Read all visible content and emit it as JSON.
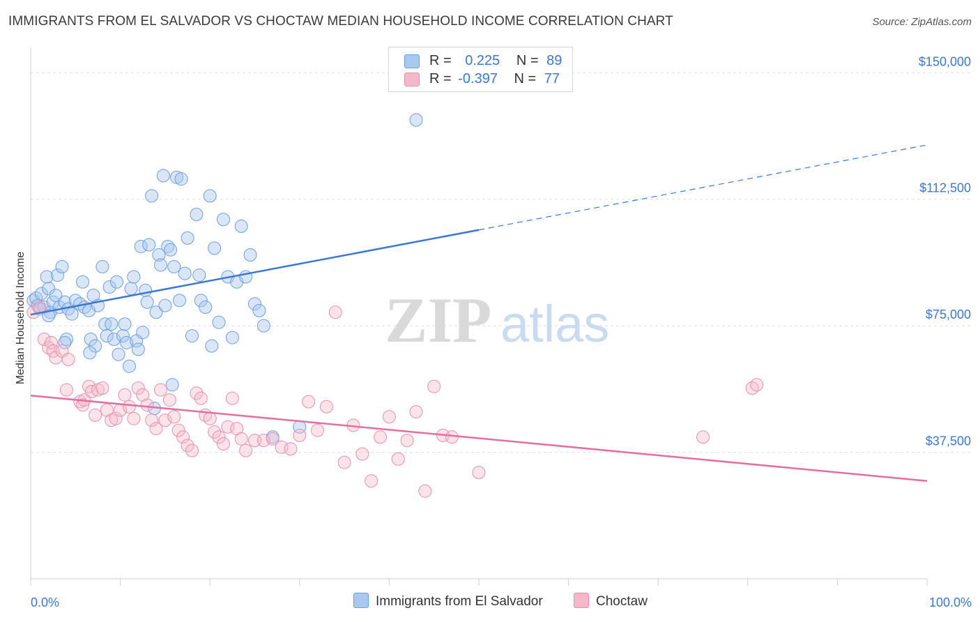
{
  "header": {
    "title": "IMMIGRANTS FROM EL SALVADOR VS CHOCTAW MEDIAN HOUSEHOLD INCOME CORRELATION CHART",
    "source": "Source: ZipAtlas.com"
  },
  "watermark": {
    "zip": "ZIP",
    "atlas": "atlas"
  },
  "legend": {
    "rows": [
      {
        "r_label": "R =",
        "r_value": "0.225",
        "n_label": "N =",
        "n_value": "89",
        "color": "#a9c8f0"
      },
      {
        "r_label": "R =",
        "r_value": "-0.397",
        "n_label": "N =",
        "n_value": "77",
        "color": "#f5b8cb"
      }
    ]
  },
  "chart_data": {
    "type": "scatter",
    "xlabel": "",
    "ylabel": "Median Household Income",
    "xlim": [
      0,
      100
    ],
    "ylim": [
      0,
      157500
    ],
    "x_tick_labels": [
      "0.0%",
      "100.0%"
    ],
    "y_tick_labels": [
      "$37,500",
      "$75,000",
      "$112,500",
      "$150,000"
    ],
    "y_ticks": [
      37500,
      75000,
      112500,
      150000
    ],
    "grid": true,
    "legend_position": "bottom",
    "colors": {
      "blue": "#3b78d6",
      "pink": "#e36f9c",
      "blue_fill": "#a9c8f0",
      "pink_fill": "#f5b8cb"
    },
    "series": [
      {
        "name": "Immigrants from El Salvador",
        "trend": {
          "x": [
            0,
            50
          ],
          "y": [
            78300,
            103400
          ],
          "extended_to": [
            100,
            128600
          ]
        },
        "points": [
          [
            0.3,
            82500
          ],
          [
            0.6,
            83200
          ],
          [
            0.8,
            81000
          ],
          [
            1.2,
            84500
          ],
          [
            1.5,
            80500
          ],
          [
            1.8,
            89500
          ],
          [
            2.0,
            86000
          ],
          [
            2.2,
            79000
          ],
          [
            2.5,
            82000
          ],
          [
            2.8,
            84000
          ],
          [
            3.0,
            90000
          ],
          [
            3.2,
            80500
          ],
          [
            3.5,
            92500
          ],
          [
            3.8,
            82000
          ],
          [
            4.0,
            71000
          ],
          [
            4.2,
            80000
          ],
          [
            4.6,
            78500
          ],
          [
            5.0,
            82500
          ],
          [
            5.5,
            81500
          ],
          [
            5.8,
            88000
          ],
          [
            6.0,
            80500
          ],
          [
            6.5,
            79500
          ],
          [
            6.7,
            71000
          ],
          [
            7.0,
            84000
          ],
          [
            7.2,
            69000
          ],
          [
            7.5,
            81000
          ],
          [
            8.0,
            92500
          ],
          [
            8.3,
            75500
          ],
          [
            8.5,
            72000
          ],
          [
            8.8,
            86500
          ],
          [
            9.0,
            75500
          ],
          [
            9.3,
            71000
          ],
          [
            9.6,
            88000
          ],
          [
            9.8,
            66500
          ],
          [
            10.3,
            72000
          ],
          [
            10.5,
            75500
          ],
          [
            10.7,
            70000
          ],
          [
            11.0,
            63000
          ],
          [
            11.2,
            86000
          ],
          [
            11.5,
            89500
          ],
          [
            11.8,
            70500
          ],
          [
            12.0,
            68000
          ],
          [
            12.3,
            98500
          ],
          [
            12.5,
            73000
          ],
          [
            12.8,
            85500
          ],
          [
            13.0,
            82000
          ],
          [
            13.2,
            99000
          ],
          [
            13.5,
            113500
          ],
          [
            13.8,
            50500
          ],
          [
            14.0,
            79000
          ],
          [
            14.3,
            96000
          ],
          [
            14.5,
            93000
          ],
          [
            14.8,
            119500
          ],
          [
            15.0,
            81000
          ],
          [
            15.3,
            98500
          ],
          [
            15.6,
            97500
          ],
          [
            15.8,
            57500
          ],
          [
            16.0,
            92500
          ],
          [
            16.3,
            119000
          ],
          [
            16.6,
            82500
          ],
          [
            16.8,
            118500
          ],
          [
            17.2,
            90500
          ],
          [
            17.5,
            101000
          ],
          [
            18.0,
            72000
          ],
          [
            18.5,
            108000
          ],
          [
            18.8,
            90000
          ],
          [
            19.0,
            82500
          ],
          [
            19.5,
            80500
          ],
          [
            20.0,
            113500
          ],
          [
            20.2,
            69000
          ],
          [
            20.5,
            98000
          ],
          [
            21.0,
            76000
          ],
          [
            21.5,
            106500
          ],
          [
            22.0,
            89500
          ],
          [
            22.5,
            71500
          ],
          [
            23.0,
            88000
          ],
          [
            23.5,
            104500
          ],
          [
            24.0,
            89500
          ],
          [
            24.5,
            96000
          ],
          [
            25.0,
            81500
          ],
          [
            25.5,
            79500
          ],
          [
            26.0,
            75000
          ],
          [
            27.0,
            42000
          ],
          [
            30.0,
            45000
          ],
          [
            43.0,
            136000
          ],
          [
            1.0,
            80000
          ],
          [
            2.0,
            78000
          ],
          [
            3.8,
            70000
          ],
          [
            6.6,
            67000
          ]
        ]
      },
      {
        "name": "Choctaw",
        "trend": {
          "x": [
            0,
            100
          ],
          "y": [
            54300,
            29000
          ]
        },
        "points": [
          [
            0.3,
            79000
          ],
          [
            1.0,
            80500
          ],
          [
            1.5,
            71000
          ],
          [
            2.0,
            68500
          ],
          [
            2.3,
            70000
          ],
          [
            2.5,
            67500
          ],
          [
            2.8,
            65500
          ],
          [
            3.5,
            67500
          ],
          [
            4.0,
            56000
          ],
          [
            4.2,
            65000
          ],
          [
            5.5,
            52500
          ],
          [
            5.8,
            51500
          ],
          [
            6.0,
            53000
          ],
          [
            6.5,
            57000
          ],
          [
            6.8,
            55500
          ],
          [
            7.2,
            48500
          ],
          [
            7.5,
            56000
          ],
          [
            8.0,
            56500
          ],
          [
            8.5,
            50000
          ],
          [
            9.0,
            47000
          ],
          [
            9.5,
            47500
          ],
          [
            10.0,
            50000
          ],
          [
            10.5,
            54500
          ],
          [
            11.0,
            51000
          ],
          [
            11.5,
            47500
          ],
          [
            12.0,
            56500
          ],
          [
            12.5,
            54500
          ],
          [
            13.0,
            51500
          ],
          [
            13.5,
            47000
          ],
          [
            14.0,
            44500
          ],
          [
            14.5,
            56000
          ],
          [
            15.0,
            47000
          ],
          [
            15.5,
            53000
          ],
          [
            16.0,
            48000
          ],
          [
            16.5,
            44000
          ],
          [
            17.0,
            42000
          ],
          [
            17.5,
            39500
          ],
          [
            18.0,
            38000
          ],
          [
            18.5,
            55000
          ],
          [
            19.0,
            53500
          ],
          [
            19.5,
            48500
          ],
          [
            20.0,
            47500
          ],
          [
            20.5,
            43500
          ],
          [
            21.0,
            42000
          ],
          [
            21.5,
            40000
          ],
          [
            22.0,
            45000
          ],
          [
            22.5,
            53500
          ],
          [
            23.0,
            44500
          ],
          [
            23.5,
            41500
          ],
          [
            24.0,
            38000
          ],
          [
            25.0,
            41000
          ],
          [
            26.0,
            41000
          ],
          [
            27.0,
            41500
          ],
          [
            28.0,
            39000
          ],
          [
            29.0,
            38500
          ],
          [
            30.0,
            42500
          ],
          [
            31.0,
            52500
          ],
          [
            32.0,
            44000
          ],
          [
            33.0,
            51000
          ],
          [
            34.0,
            79000
          ],
          [
            35.0,
            34500
          ],
          [
            36.0,
            45500
          ],
          [
            37.0,
            37000
          ],
          [
            38.0,
            29000
          ],
          [
            39.0,
            42000
          ],
          [
            40.0,
            48000
          ],
          [
            41.0,
            35500
          ],
          [
            42.0,
            41000
          ],
          [
            43.0,
            49500
          ],
          [
            44.0,
            26000
          ],
          [
            45.0,
            57000
          ],
          [
            46.0,
            42500
          ],
          [
            47.0,
            42000
          ],
          [
            50.0,
            31500
          ],
          [
            75.0,
            42000
          ],
          [
            80.5,
            56500
          ],
          [
            81.0,
            57500
          ]
        ]
      }
    ]
  },
  "bottom_legend": {
    "items": [
      {
        "label": "Immigrants from El Salvador",
        "color": "#a9c8f0"
      },
      {
        "label": "Choctaw",
        "color": "#f5b8cb"
      }
    ]
  }
}
